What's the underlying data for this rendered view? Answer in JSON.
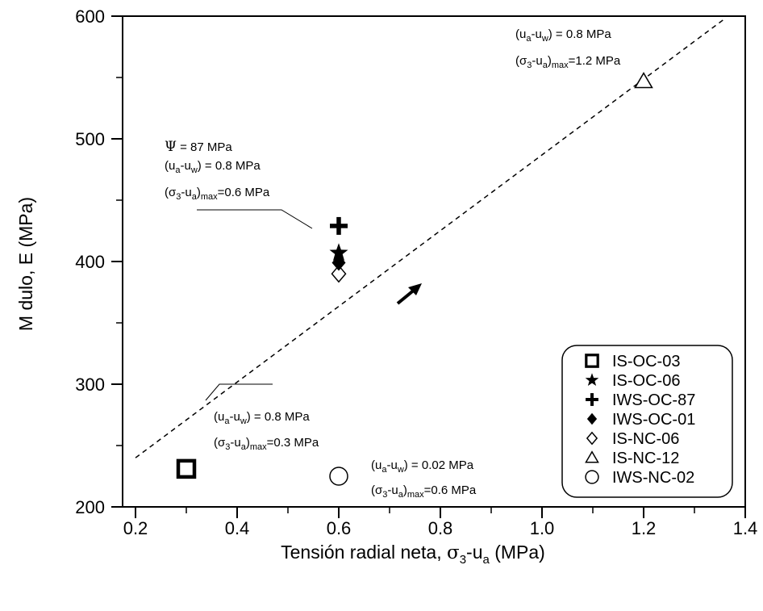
{
  "chart_data": {
    "type": "scatter",
    "xlabel_parts": [
      "Tensión radial neta, ",
      "σ",
      "3",
      "-u",
      "a",
      " (MPa)"
    ],
    "ylabel": "M dulo, E (MPa)",
    "xlim": [
      0.2,
      1.4
    ],
    "ylim": [
      200,
      600
    ],
    "x_ticks": [
      "0.2",
      "0.4",
      "0.6",
      "0.8",
      "1.0",
      "1.2",
      "1.4"
    ],
    "y_ticks": [
      "200",
      "300",
      "400",
      "500",
      "600"
    ],
    "grid": false,
    "legend_position": "bottom-right",
    "series": [
      {
        "name": "IS-OC-03",
        "marker": "square-bold",
        "points": [
          {
            "x": 0.3,
            "y": 231
          }
        ]
      },
      {
        "name": "IS-OC-06",
        "marker": "star",
        "points": [
          {
            "x": 0.6,
            "y": 407
          }
        ]
      },
      {
        "name": "IWS-OC-87",
        "marker": "plus-bold",
        "points": [
          {
            "x": 0.6,
            "y": 429
          }
        ]
      },
      {
        "name": "IWS-OC-01",
        "marker": "diamond-filled",
        "points": [
          {
            "x": 0.6,
            "y": 399
          }
        ]
      },
      {
        "name": "IS-NC-06",
        "marker": "diamond-open",
        "points": [
          {
            "x": 0.6,
            "y": 390
          }
        ]
      },
      {
        "name": "IS-NC-12",
        "marker": "triangle-open",
        "points": [
          {
            "x": 1.2,
            "y": 547
          }
        ]
      },
      {
        "name": "IWS-NC-02",
        "marker": "circle-open",
        "points": [
          {
            "x": 0.6,
            "y": 225
          }
        ]
      }
    ],
    "trend_line": {
      "style": "dashed",
      "x": [
        0.2,
        1.36
      ],
      "y": [
        240,
        598
      ]
    },
    "annotations": {
      "top_right": {
        "line1": {
          "p": "(u",
          "s1": "a",
          "m": "-u",
          "s2": "w",
          "t": ") = 0.8 MPa"
        },
        "line2": {
          "p": "(σ",
          "s1": "3",
          "m": "-u",
          "s2": "a",
          "m2": ")",
          "s3": "max",
          "t": "=1.2 MPa"
        }
      },
      "top_left": {
        "psi": {
          "sym": "Ψ",
          "t": " = 87 MPa"
        },
        "line1": {
          "p": "(u",
          "s1": "a",
          "m": "-u",
          "s2": "w",
          "t": ") = 0.8 MPa"
        },
        "line2": {
          "p": "(σ",
          "s1": "3",
          "m": "-u",
          "s2": "a",
          "m2": ")",
          "s3": "max",
          "t": "=0.6 MPa"
        }
      },
      "bottom_left": {
        "line1": {
          "p": "(u",
          "s1": "a",
          "m": "-u",
          "s2": "w",
          "t": ") = 0.8 MPa"
        },
        "line2": {
          "p": "(σ",
          "s1": "3",
          "m": "-u",
          "s2": "a",
          "m2": ")",
          "s3": "max",
          "t": "=0.3 MPa"
        }
      },
      "bottom_center": {
        "line1": {
          "p": "(u",
          "s1": "a",
          "m": "-u",
          "s2": "w",
          "t": ") = 0.02 MPa"
        },
        "line2": {
          "p": "(σ",
          "s1": "3",
          "m": "-u",
          "s2": "a",
          "m2": ")",
          "s3": "max",
          "t": "=0.6 MPa"
        }
      }
    }
  }
}
